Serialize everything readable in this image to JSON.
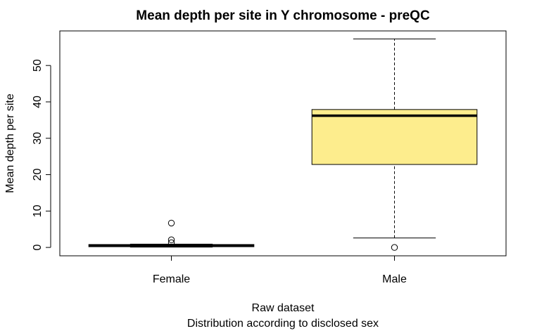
{
  "chart_data": {
    "type": "boxplot",
    "title": "Mean depth per site in Y chromosome - preQC",
    "ylabel": "Mean depth per site",
    "xlabel": "Raw dataset",
    "subtitle": "Distribution according to disclosed sex",
    "ylim": [
      -2.3,
      59.5
    ],
    "yticks": [
      0,
      10,
      20,
      30,
      40,
      50
    ],
    "grid": false,
    "categories": [
      "Female",
      "Male"
    ],
    "boxes": [
      {
        "name": "Female",
        "whisker_low": 0.1,
        "q1": 0.2,
        "median": 0.5,
        "q3": 0.8,
        "whisker_high": 0.9,
        "outliers": [
          6.7,
          2.1,
          1.3
        ],
        "fill": "#7a7a7a"
      },
      {
        "name": "Male",
        "whisker_low": 2.6,
        "q1": 22.8,
        "median": 36.2,
        "q3": 37.9,
        "whisker_high": 57.3,
        "outliers": [
          0.0
        ],
        "fill": "#fded8d"
      }
    ]
  }
}
